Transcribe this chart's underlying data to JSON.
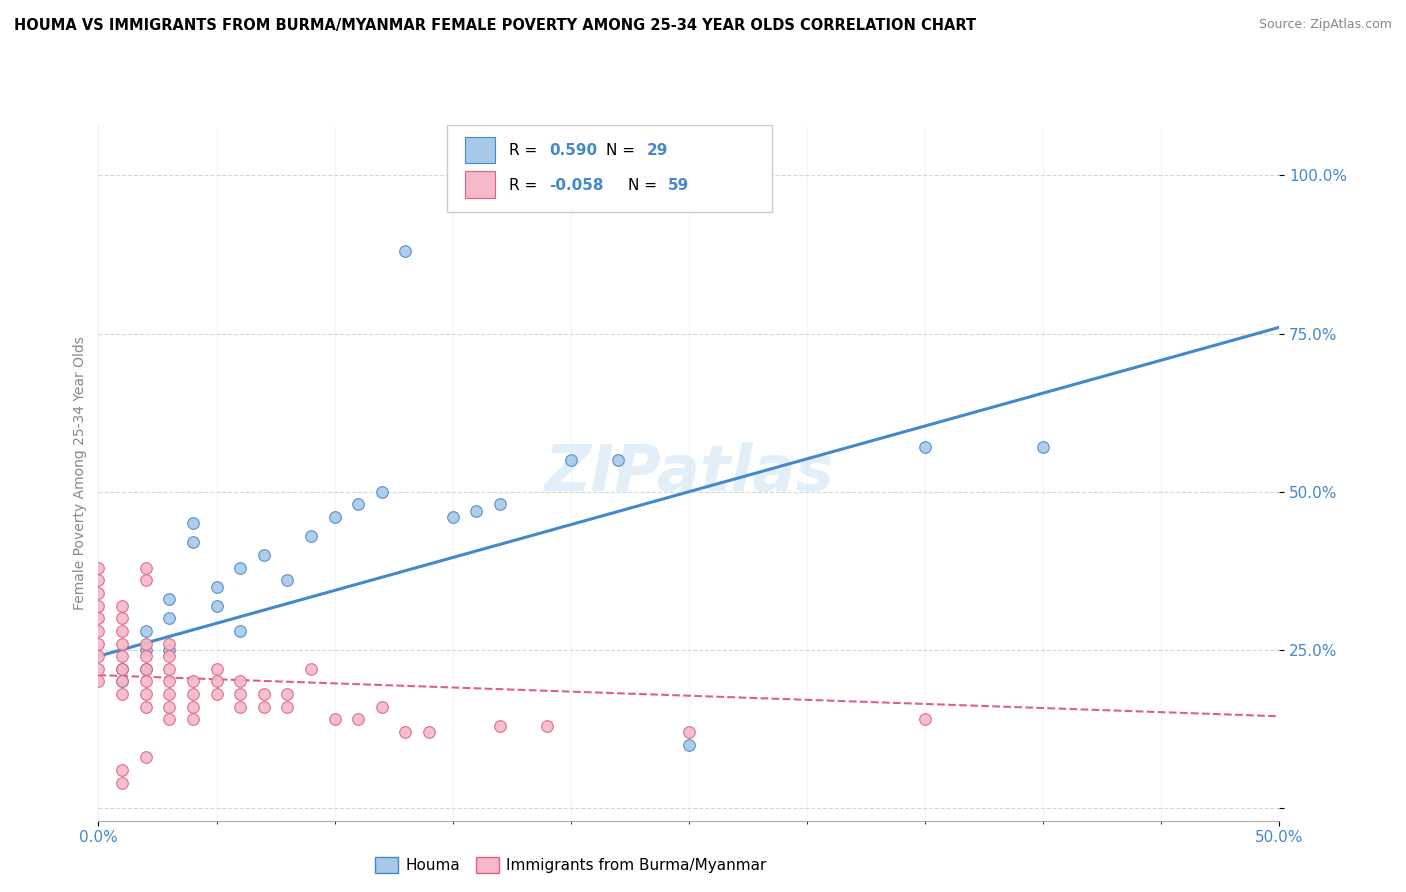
{
  "title": "HOUMA VS IMMIGRANTS FROM BURMA/MYANMAR FEMALE POVERTY AMONG 25-34 YEAR OLDS CORRELATION CHART",
  "source": "Source: ZipAtlas.com",
  "ylabel": "Female Poverty Among 25-34 Year Olds",
  "xlim": [
    0.0,
    0.5
  ],
  "ylim": [
    -0.02,
    1.08
  ],
  "houma_color": "#a8c8e8",
  "burma_color": "#f5b8c8",
  "houma_line_color": "#4488cc",
  "burma_line_color": "#e06080",
  "watermark": "ZIPatlas",
  "houma_scatter": [
    [
      0.01,
      0.2
    ],
    [
      0.01,
      0.22
    ],
    [
      0.02,
      0.22
    ],
    [
      0.02,
      0.25
    ],
    [
      0.02,
      0.28
    ],
    [
      0.03,
      0.3
    ],
    [
      0.03,
      0.33
    ],
    [
      0.04,
      0.42
    ],
    [
      0.04,
      0.45
    ],
    [
      0.05,
      0.32
    ],
    [
      0.05,
      0.35
    ],
    [
      0.06,
      0.38
    ],
    [
      0.07,
      0.4
    ],
    [
      0.08,
      0.36
    ],
    [
      0.09,
      0.43
    ],
    [
      0.1,
      0.46
    ],
    [
      0.12,
      0.5
    ],
    [
      0.13,
      0.88
    ],
    [
      0.2,
      0.55
    ],
    [
      0.22,
      0.55
    ],
    [
      0.35,
      0.57
    ],
    [
      0.4,
      0.57
    ],
    [
      0.25,
      0.1
    ],
    [
      0.15,
      0.46
    ],
    [
      0.16,
      0.47
    ],
    [
      0.17,
      0.48
    ],
    [
      0.11,
      0.48
    ],
    [
      0.06,
      0.28
    ],
    [
      0.03,
      0.25
    ]
  ],
  "burma_scatter": [
    [
      0.0,
      0.2
    ],
    [
      0.0,
      0.22
    ],
    [
      0.0,
      0.24
    ],
    [
      0.0,
      0.26
    ],
    [
      0.0,
      0.28
    ],
    [
      0.0,
      0.3
    ],
    [
      0.0,
      0.32
    ],
    [
      0.0,
      0.34
    ],
    [
      0.0,
      0.36
    ],
    [
      0.0,
      0.38
    ],
    [
      0.01,
      0.18
    ],
    [
      0.01,
      0.2
    ],
    [
      0.01,
      0.22
    ],
    [
      0.01,
      0.24
    ],
    [
      0.01,
      0.26
    ],
    [
      0.01,
      0.28
    ],
    [
      0.01,
      0.3
    ],
    [
      0.01,
      0.32
    ],
    [
      0.02,
      0.16
    ],
    [
      0.02,
      0.18
    ],
    [
      0.02,
      0.2
    ],
    [
      0.02,
      0.22
    ],
    [
      0.02,
      0.24
    ],
    [
      0.02,
      0.26
    ],
    [
      0.02,
      0.36
    ],
    [
      0.02,
      0.38
    ],
    [
      0.03,
      0.14
    ],
    [
      0.03,
      0.16
    ],
    [
      0.03,
      0.18
    ],
    [
      0.03,
      0.2
    ],
    [
      0.03,
      0.22
    ],
    [
      0.03,
      0.24
    ],
    [
      0.03,
      0.26
    ],
    [
      0.04,
      0.14
    ],
    [
      0.04,
      0.16
    ],
    [
      0.04,
      0.18
    ],
    [
      0.04,
      0.2
    ],
    [
      0.05,
      0.18
    ],
    [
      0.05,
      0.2
    ],
    [
      0.05,
      0.22
    ],
    [
      0.06,
      0.16
    ],
    [
      0.06,
      0.18
    ],
    [
      0.06,
      0.2
    ],
    [
      0.07,
      0.16
    ],
    [
      0.07,
      0.18
    ],
    [
      0.08,
      0.16
    ],
    [
      0.08,
      0.18
    ],
    [
      0.09,
      0.22
    ],
    [
      0.1,
      0.14
    ],
    [
      0.11,
      0.14
    ],
    [
      0.12,
      0.16
    ],
    [
      0.13,
      0.12
    ],
    [
      0.14,
      0.12
    ],
    [
      0.17,
      0.13
    ],
    [
      0.19,
      0.13
    ],
    [
      0.01,
      0.04
    ],
    [
      0.01,
      0.06
    ],
    [
      0.02,
      0.08
    ],
    [
      0.25,
      0.12
    ],
    [
      0.35,
      0.14
    ]
  ],
  "houma_reg_line": [
    [
      0.0,
      0.24
    ],
    [
      0.5,
      0.76
    ]
  ],
  "burma_reg_line": [
    [
      0.0,
      0.21
    ],
    [
      0.5,
      0.145
    ]
  ]
}
